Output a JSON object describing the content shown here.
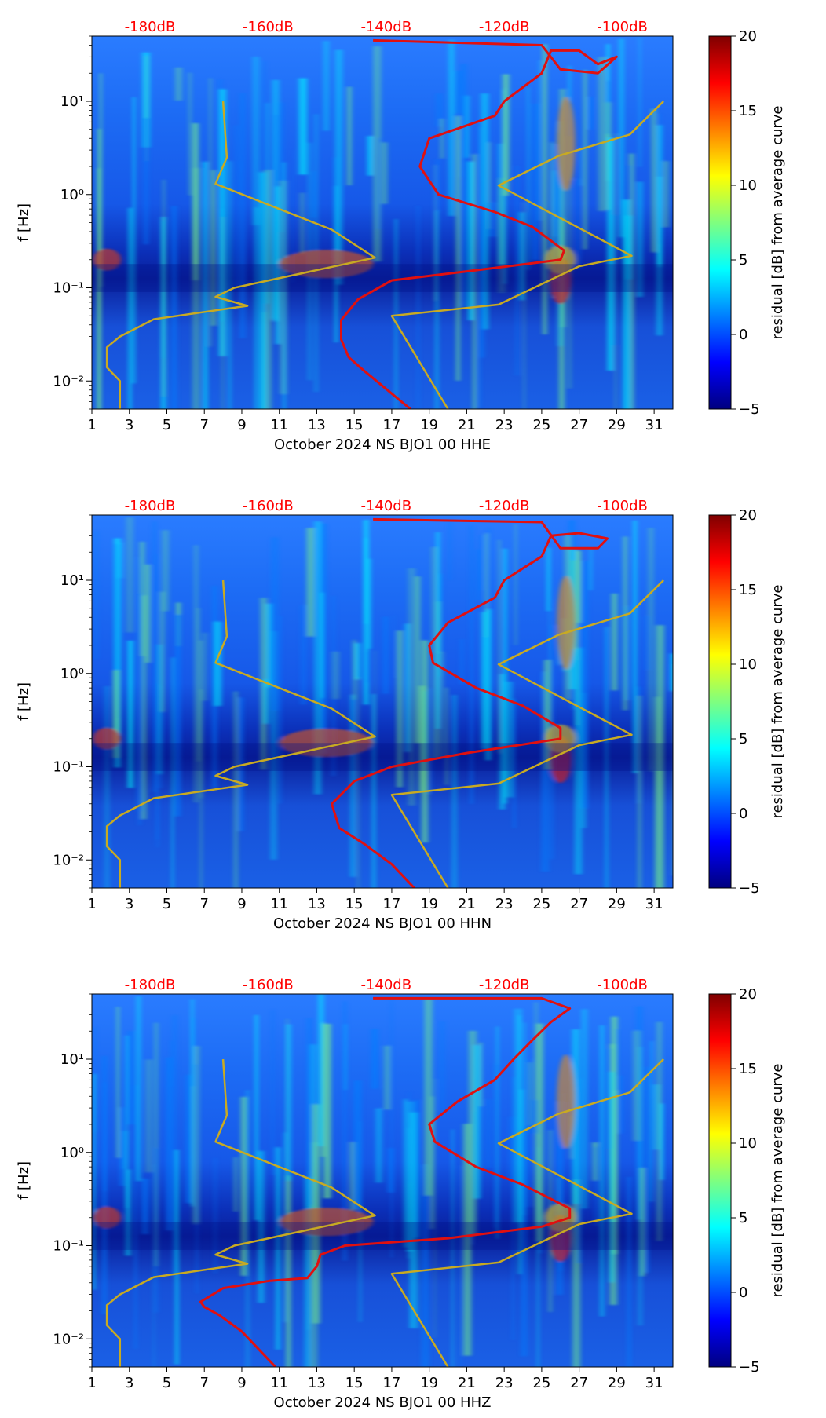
{
  "colors": {
    "noise_model_line": "#c8aa22",
    "average_curve_line": "#e01010",
    "db_label": "#ff0000",
    "colormap": "jet"
  },
  "chart_data": [
    {
      "type": "heatmap",
      "xlabel": "October 2024 NS BJO1 00 HHE",
      "ylabel": "f [Hz]",
      "x_ticks": [
        "1",
        "3",
        "5",
        "7",
        "9",
        "11",
        "13",
        "15",
        "17",
        "19",
        "21",
        "23",
        "25",
        "27",
        "29",
        "31"
      ],
      "xlim": [
        1,
        32
      ],
      "y_scale": "log",
      "ylim": [
        0.005,
        50
      ],
      "y_ticks": [
        {
          "label": "10⁻²",
          "value": 0.01
        },
        {
          "label": "10⁻¹",
          "value": 0.1
        },
        {
          "label": "10⁰",
          "value": 1
        },
        {
          "label": "10¹",
          "value": 10
        }
      ],
      "db_labels": [
        {
          "label": "-180dB",
          "x": 4.1
        },
        {
          "label": "-160dB",
          "x": 10.4
        },
        {
          "label": "-140dB",
          "x": 16.7
        },
        {
          "label": "-120dB",
          "x": 23.0
        },
        {
          "label": "-100dB",
          "x": 29.3
        }
      ],
      "colorbar": {
        "label": "residual [dB] from average curve",
        "min": -5,
        "max": 20,
        "ticks": [
          "−5",
          "0",
          "5",
          "10",
          "15",
          "20"
        ]
      },
      "series": [
        {
          "kind": "noise_model",
          "points": [
            [
              2.5,
              0.005
            ],
            [
              2.5,
              0.01
            ],
            [
              1.8,
              0.014
            ],
            [
              1.8,
              0.023
            ],
            [
              2.5,
              0.03
            ],
            [
              4.3,
              0.046
            ],
            [
              9.3,
              0.064
            ],
            [
              7.6,
              0.08
            ],
            [
              8.6,
              0.1
            ],
            [
              16.1,
              0.21
            ],
            [
              13.8,
              0.42
            ],
            [
              7.6,
              1.3
            ],
            [
              8.2,
              2.5
            ],
            [
              8.0,
              10
            ]
          ]
        },
        {
          "kind": "noise_model",
          "points": [
            [
              20.0,
              0.005
            ],
            [
              17.0,
              0.05
            ],
            [
              22.7,
              0.066
            ],
            [
              27.0,
              0.17
            ],
            [
              29.8,
              0.22
            ],
            [
              22.7,
              1.25
            ],
            [
              25.9,
              2.6
            ],
            [
              29.7,
              4.4
            ],
            [
              31.5,
              10
            ]
          ]
        },
        {
          "kind": "average_curve",
          "points": [
            [
              18.0,
              0.005
            ],
            [
              15.5,
              0.013
            ],
            [
              14.7,
              0.018
            ],
            [
              14.3,
              0.028
            ],
            [
              14.3,
              0.045
            ],
            [
              15.2,
              0.075
            ],
            [
              17.0,
              0.12
            ],
            [
              21.0,
              0.15
            ],
            [
              26.0,
              0.2
            ],
            [
              26.2,
              0.25
            ],
            [
              24.5,
              0.45
            ],
            [
              22.5,
              0.65
            ],
            [
              19.5,
              1.0
            ],
            [
              18.5,
              2.0
            ],
            [
              19.0,
              4.0
            ],
            [
              22.5,
              7.0
            ],
            [
              23.0,
              10
            ],
            [
              25.0,
              20
            ],
            [
              25.5,
              35
            ],
            [
              27,
              35
            ],
            [
              28,
              25
            ],
            [
              29,
              30
            ],
            [
              28,
              20
            ],
            [
              26,
              22
            ],
            [
              25,
              40
            ],
            [
              16,
              45
            ]
          ]
        }
      ]
    },
    {
      "type": "heatmap",
      "xlabel": "October 2024 NS BJO1 00 HHN",
      "ylabel": "f [Hz]",
      "x_ticks": [
        "1",
        "3",
        "5",
        "7",
        "9",
        "11",
        "13",
        "15",
        "17",
        "19",
        "21",
        "23",
        "25",
        "27",
        "29",
        "31"
      ],
      "xlim": [
        1,
        32
      ],
      "y_scale": "log",
      "ylim": [
        0.005,
        50
      ],
      "y_ticks": [
        {
          "label": "10⁻²",
          "value": 0.01
        },
        {
          "label": "10⁻¹",
          "value": 0.1
        },
        {
          "label": "10⁰",
          "value": 1
        },
        {
          "label": "10¹",
          "value": 10
        }
      ],
      "db_labels": [
        {
          "label": "-180dB",
          "x": 4.1
        },
        {
          "label": "-160dB",
          "x": 10.4
        },
        {
          "label": "-140dB",
          "x": 16.7
        },
        {
          "label": "-120dB",
          "x": 23.0
        },
        {
          "label": "-100dB",
          "x": 29.3
        }
      ],
      "colorbar": {
        "label": "residual [dB] from average curve",
        "min": -5,
        "max": 20,
        "ticks": [
          "−5",
          "0",
          "5",
          "10",
          "15",
          "20"
        ]
      },
      "series": [
        {
          "kind": "noise_model",
          "points": [
            [
              2.5,
              0.005
            ],
            [
              2.5,
              0.01
            ],
            [
              1.8,
              0.014
            ],
            [
              1.8,
              0.023
            ],
            [
              2.5,
              0.03
            ],
            [
              4.3,
              0.046
            ],
            [
              9.3,
              0.064
            ],
            [
              7.6,
              0.08
            ],
            [
              8.6,
              0.1
            ],
            [
              16.1,
              0.21
            ],
            [
              13.8,
              0.42
            ],
            [
              7.6,
              1.3
            ],
            [
              8.2,
              2.5
            ],
            [
              8.0,
              10
            ]
          ]
        },
        {
          "kind": "noise_model",
          "points": [
            [
              20.0,
              0.005
            ],
            [
              17.0,
              0.05
            ],
            [
              22.7,
              0.066
            ],
            [
              27.0,
              0.17
            ],
            [
              29.8,
              0.22
            ],
            [
              22.7,
              1.25
            ],
            [
              25.9,
              2.6
            ],
            [
              29.7,
              4.4
            ],
            [
              31.5,
              10
            ]
          ]
        },
        {
          "kind": "average_curve",
          "points": [
            [
              18.2,
              0.005
            ],
            [
              17.0,
              0.009
            ],
            [
              15.5,
              0.015
            ],
            [
              14.2,
              0.022
            ],
            [
              13.8,
              0.04
            ],
            [
              15.0,
              0.07
            ],
            [
              17.0,
              0.1
            ],
            [
              21.0,
              0.14
            ],
            [
              26.0,
              0.2
            ],
            [
              26.0,
              0.26
            ],
            [
              24.0,
              0.45
            ],
            [
              21.5,
              0.7
            ],
            [
              19.2,
              1.3
            ],
            [
              19.0,
              2.0
            ],
            [
              20.0,
              3.5
            ],
            [
              22.5,
              6.5
            ],
            [
              23.0,
              10
            ],
            [
              25.0,
              18
            ],
            [
              25.5,
              30
            ],
            [
              27,
              32
            ],
            [
              28.5,
              28
            ],
            [
              28,
              22
            ],
            [
              26,
              22
            ],
            [
              25,
              42
            ],
            [
              16,
              45
            ]
          ]
        }
      ]
    },
    {
      "type": "heatmap",
      "xlabel": "October 2024 NS BJO1 00 HHZ",
      "ylabel": "f [Hz]",
      "x_ticks": [
        "1",
        "3",
        "5",
        "7",
        "9",
        "11",
        "13",
        "15",
        "17",
        "19",
        "21",
        "23",
        "25",
        "27",
        "29",
        "31"
      ],
      "xlim": [
        1,
        32
      ],
      "y_scale": "log",
      "ylim": [
        0.005,
        50
      ],
      "y_ticks": [
        {
          "label": "10⁻²",
          "value": 0.01
        },
        {
          "label": "10⁻¹",
          "value": 0.1
        },
        {
          "label": "10⁰",
          "value": 1
        },
        {
          "label": "10¹",
          "value": 10
        }
      ],
      "db_labels": [
        {
          "label": "-180dB",
          "x": 4.1
        },
        {
          "label": "-160dB",
          "x": 10.4
        },
        {
          "label": "-140dB",
          "x": 16.7
        },
        {
          "label": "-120dB",
          "x": 23.0
        },
        {
          "label": "-100dB",
          "x": 29.3
        }
      ],
      "colorbar": {
        "label": "residual [dB] from average curve",
        "min": -5,
        "max": 20,
        "ticks": [
          "−5",
          "0",
          "5",
          "10",
          "15",
          "20"
        ]
      },
      "series": [
        {
          "kind": "noise_model",
          "points": [
            [
              2.5,
              0.005
            ],
            [
              2.5,
              0.01
            ],
            [
              1.8,
              0.014
            ],
            [
              1.8,
              0.023
            ],
            [
              2.5,
              0.03
            ],
            [
              4.3,
              0.046
            ],
            [
              9.3,
              0.064
            ],
            [
              7.6,
              0.08
            ],
            [
              8.6,
              0.1
            ],
            [
              16.1,
              0.21
            ],
            [
              13.8,
              0.42
            ],
            [
              7.6,
              1.3
            ],
            [
              8.2,
              2.5
            ],
            [
              8.0,
              10
            ]
          ]
        },
        {
          "kind": "noise_model",
          "points": [
            [
              20.0,
              0.005
            ],
            [
              17.0,
              0.05
            ],
            [
              22.7,
              0.066
            ],
            [
              27.0,
              0.17
            ],
            [
              29.8,
              0.22
            ],
            [
              22.7,
              1.25
            ],
            [
              25.9,
              2.6
            ],
            [
              29.7,
              4.4
            ],
            [
              31.5,
              10
            ]
          ]
        },
        {
          "kind": "average_curve",
          "points": [
            [
              10.8,
              0.005
            ],
            [
              9.0,
              0.012
            ],
            [
              7.8,
              0.018
            ],
            [
              7.0,
              0.022
            ],
            [
              6.8,
              0.025
            ],
            [
              8.0,
              0.035
            ],
            [
              10.5,
              0.042
            ],
            [
              12.5,
              0.045
            ],
            [
              13.0,
              0.06
            ],
            [
              13.2,
              0.08
            ],
            [
              14.5,
              0.1
            ],
            [
              20.0,
              0.12
            ],
            [
              25.0,
              0.16
            ],
            [
              26.5,
              0.2
            ],
            [
              26.5,
              0.25
            ],
            [
              24.0,
              0.45
            ],
            [
              21.5,
              0.7
            ],
            [
              19.3,
              1.3
            ],
            [
              19.0,
              2.0
            ],
            [
              20.5,
              3.5
            ],
            [
              22.5,
              6.0
            ],
            [
              23.5,
              10
            ],
            [
              24.5,
              16
            ],
            [
              25.5,
              25
            ],
            [
              26.5,
              35
            ],
            [
              25.0,
              45
            ],
            [
              16,
              45
            ]
          ]
        }
      ]
    }
  ]
}
